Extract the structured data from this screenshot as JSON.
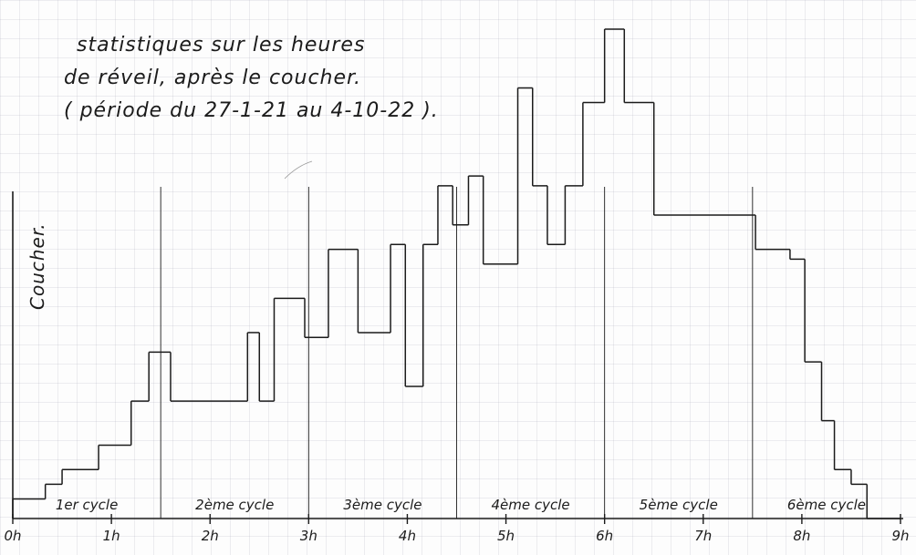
{
  "chart_data": {
    "type": "histogram",
    "title_lines": [
      "statistiques sur les heures",
      "de réveil, après le coucher.",
      "( période du 27-1-21 au 4-10-22 )."
    ],
    "xlabel": "",
    "ylabel": "Coucher.",
    "xlim": [
      0,
      9
    ],
    "ylim": [
      0,
      1
    ],
    "x_ticks": [
      {
        "value": 0,
        "label": "0h"
      },
      {
        "value": 1,
        "label": "1h"
      },
      {
        "value": 2,
        "label": "2h"
      },
      {
        "value": 3,
        "label": "3h"
      },
      {
        "value": 4,
        "label": "4h"
      },
      {
        "value": 5,
        "label": "5h"
      },
      {
        "value": 6,
        "label": "6h"
      },
      {
        "value": 7,
        "label": "7h"
      },
      {
        "value": 8,
        "label": "8h"
      },
      {
        "value": 9,
        "label": "9h"
      }
    ],
    "cycles": [
      {
        "label": "1er cycle",
        "start": 0,
        "end": 1.5
      },
      {
        "label": "2ème cycle",
        "start": 1.5,
        "end": 3.0
      },
      {
        "label": "3ème cycle",
        "start": 3.0,
        "end": 4.5
      },
      {
        "label": "4ème cycle",
        "start": 4.5,
        "end": 6.0
      },
      {
        "label": "5ème cycle",
        "start": 6.0,
        "end": 7.5
      },
      {
        "label": "6ème cycle",
        "start": 7.5,
        "end": 9.0
      }
    ],
    "bins": [
      {
        "x0": 0.0,
        "x1": 0.33,
        "y": 0.04
      },
      {
        "x0": 0.33,
        "x1": 0.5,
        "y": 0.07
      },
      {
        "x0": 0.5,
        "x1": 0.87,
        "y": 0.1
      },
      {
        "x0": 0.87,
        "x1": 1.2,
        "y": 0.15
      },
      {
        "x0": 1.2,
        "x1": 1.38,
        "y": 0.24
      },
      {
        "x0": 1.38,
        "x1": 1.6,
        "y": 0.34
      },
      {
        "x0": 1.6,
        "x1": 2.38,
        "y": 0.24
      },
      {
        "x0": 2.38,
        "x1": 2.5,
        "y": 0.38
      },
      {
        "x0": 2.5,
        "x1": 2.65,
        "y": 0.24
      },
      {
        "x0": 2.65,
        "x1": 2.96,
        "y": 0.45
      },
      {
        "x0": 2.96,
        "x1": 3.2,
        "y": 0.37
      },
      {
        "x0": 3.2,
        "x1": 3.5,
        "y": 0.55
      },
      {
        "x0": 3.5,
        "x1": 3.83,
        "y": 0.38
      },
      {
        "x0": 3.83,
        "x1": 3.98,
        "y": 0.56
      },
      {
        "x0": 3.98,
        "x1": 4.16,
        "y": 0.27
      },
      {
        "x0": 4.16,
        "x1": 4.31,
        "y": 0.56
      },
      {
        "x0": 4.31,
        "x1": 4.46,
        "y": 0.68
      },
      {
        "x0": 4.46,
        "x1": 4.62,
        "y": 0.6
      },
      {
        "x0": 4.62,
        "x1": 4.77,
        "y": 0.7
      },
      {
        "x0": 4.77,
        "x1": 5.12,
        "y": 0.52
      },
      {
        "x0": 5.12,
        "x1": 5.27,
        "y": 0.88
      },
      {
        "x0": 5.27,
        "x1": 5.42,
        "y": 0.68
      },
      {
        "x0": 5.42,
        "x1": 5.6,
        "y": 0.56
      },
      {
        "x0": 5.6,
        "x1": 5.78,
        "y": 0.68
      },
      {
        "x0": 5.78,
        "x1": 6.0,
        "y": 0.85
      },
      {
        "x0": 6.0,
        "x1": 6.2,
        "y": 1.0
      },
      {
        "x0": 6.2,
        "x1": 6.5,
        "y": 0.85
      },
      {
        "x0": 6.5,
        "x1": 7.53,
        "y": 0.62
      },
      {
        "x0": 7.53,
        "x1": 7.88,
        "y": 0.55
      },
      {
        "x0": 7.88,
        "x1": 8.03,
        "y": 0.53
      },
      {
        "x0": 8.03,
        "x1": 8.2,
        "y": 0.32
      },
      {
        "x0": 8.2,
        "x1": 8.33,
        "y": 0.2
      },
      {
        "x0": 8.33,
        "x1": 8.5,
        "y": 0.1
      },
      {
        "x0": 8.5,
        "x1": 8.66,
        "y": 0.07
      },
      {
        "x0": 8.66,
        "x1": 9.0,
        "y": 0.0
      }
    ],
    "grid": true,
    "legend": "none"
  }
}
